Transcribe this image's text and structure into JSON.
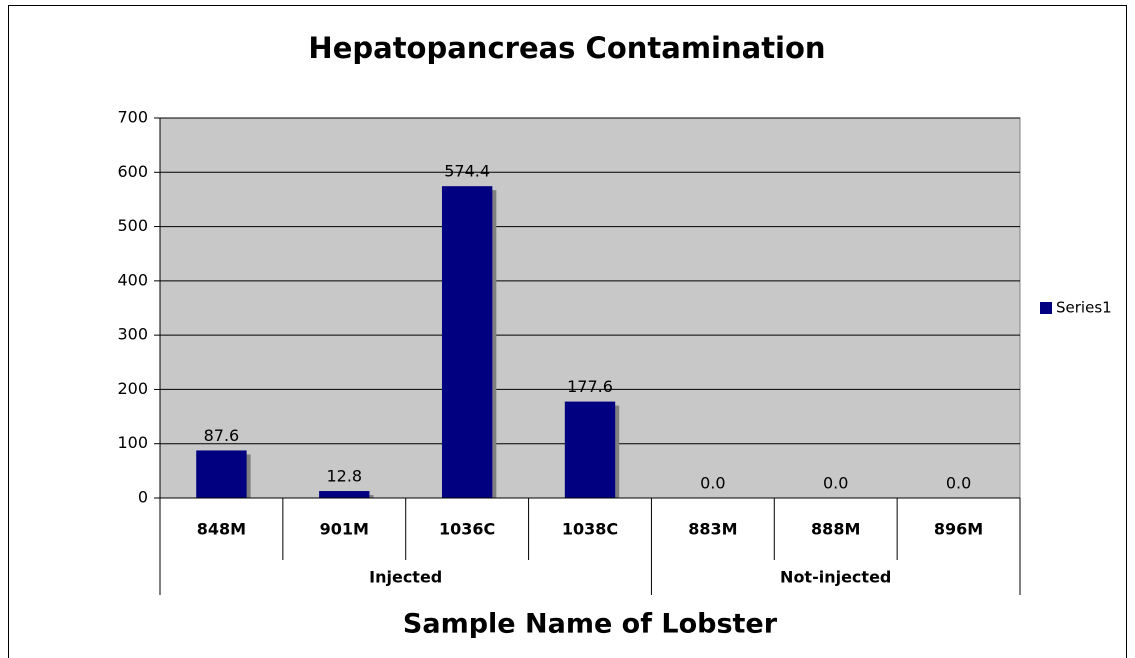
{
  "chart_data": {
    "type": "bar",
    "title": "Hepatopancreas Contamination",
    "x_label": "Sample Name of Lobster",
    "categories": [
      "848M",
      "901M",
      "1036C",
      "1038C",
      "883M",
      "888M",
      "896M"
    ],
    "groups": [
      "Injected",
      "Injected",
      "Injected",
      "Injected",
      "Not-injected",
      "Not-injected",
      "Not-injected"
    ],
    "series": [
      {
        "name": "Series1",
        "color": "#000080",
        "values": [
          87.6,
          12.8,
          574.4,
          177.6,
          0,
          0,
          0
        ],
        "value_labels": [
          "87.6",
          "12.8",
          "574.4",
          "177.6",
          "0.0",
          "0.0",
          "0.0"
        ]
      }
    ],
    "ylim": [
      0,
      700
    ],
    "yticks": [
      0,
      100,
      200,
      300,
      400,
      500,
      600,
      700
    ],
    "grid": true,
    "legend": "right"
  }
}
